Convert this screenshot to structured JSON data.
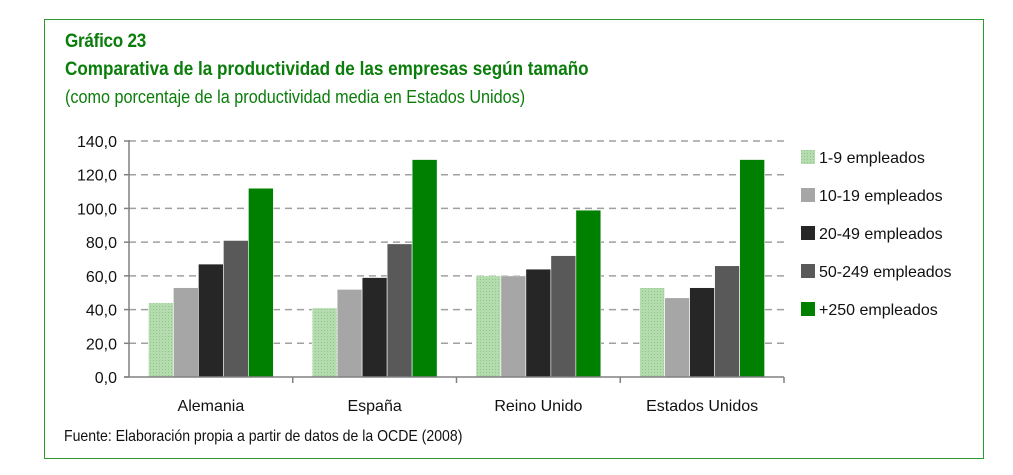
{
  "figure": {
    "number_label": "Gráfico 23",
    "source": "Fuente:  Elaboración propia a partir de datos de la OCDE (2008)"
  },
  "chart_data": {
    "type": "bar",
    "title": "Comparativa de la productividad de las empresas según tamaño",
    "subtitle": "(como porcentaje de la productividad media en Estados Unidos)",
    "xlabel": "",
    "ylabel": "",
    "ylim": [
      0,
      140
    ],
    "yticks": [
      0,
      20,
      40,
      60,
      80,
      100,
      120,
      140
    ],
    "ytick_labels": [
      "0,0",
      "20,0",
      "40,0",
      "60,0",
      "80,0",
      "100,0",
      "120,0",
      "140,0"
    ],
    "grid": "horizontal-dashed",
    "legend_position": "right",
    "categories": [
      "Alemania",
      "España",
      "Reino Unido",
      "Estados Unidos"
    ],
    "series": [
      {
        "name": "1-9 empleados",
        "color": "#a8d5a2",
        "pattern": "dotted",
        "values": [
          44,
          41,
          60,
          53
        ]
      },
      {
        "name": "10-19 empleados",
        "color": "#a6a6a6",
        "values": [
          53,
          52,
          60,
          47
        ]
      },
      {
        "name": "20-49 empleados",
        "color": "#262626",
        "values": [
          67,
          59,
          64,
          53
        ]
      },
      {
        "name": "50-249 empleados",
        "color": "#595959",
        "values": [
          81,
          79,
          72,
          66
        ]
      },
      {
        "name": "+250 empleados",
        "color": "#008000",
        "values": [
          112,
          129,
          99,
          129
        ]
      }
    ]
  }
}
